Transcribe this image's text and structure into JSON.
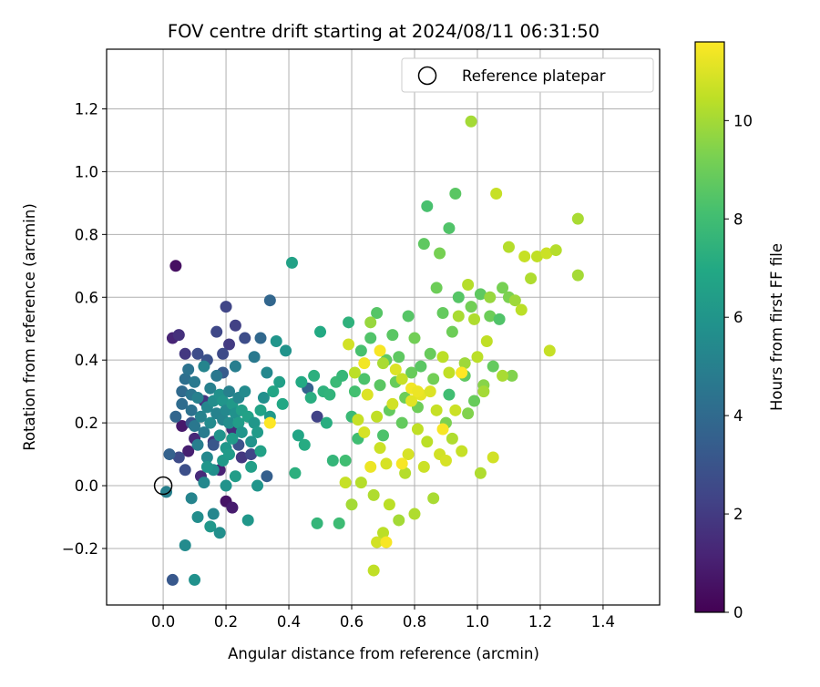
{
  "chart_data": {
    "type": "scatter",
    "title": "FOV centre drift starting at 2024/08/11 06:31:50",
    "xlabel": "Angular distance from reference (arcmin)",
    "ylabel": "Rotation from reference (arcmin)",
    "xlim": [
      -0.18,
      1.58
    ],
    "ylim": [
      -0.38,
      1.39
    ],
    "xticks": [
      "0.0",
      "0.2",
      "0.4",
      "0.6",
      "0.8",
      "1.0",
      "1.2",
      "1.4"
    ],
    "yticks": [
      "−0.2",
      "0.0",
      "0.2",
      "0.4",
      "0.6",
      "0.8",
      "1.0",
      "1.2"
    ],
    "grid": true,
    "legend": {
      "position": "top-right",
      "entries": [
        "Reference platepar"
      ]
    },
    "reference_point": {
      "x": 0.0,
      "y": 0.0
    },
    "colorbar": {
      "label": "Hours from first FF file",
      "range": [
        0,
        11.6
      ],
      "ticks": [
        "0",
        "2",
        "4",
        "6",
        "8",
        "10"
      ],
      "colormap": "viridis"
    },
    "points": [
      [
        0.04,
        0.7,
        0.5
      ],
      [
        0.03,
        0.47,
        1.2
      ],
      [
        0.05,
        0.48,
        1.6
      ],
      [
        0.06,
        0.19,
        0.8
      ],
      [
        0.08,
        0.11,
        1.0
      ],
      [
        0.1,
        0.15,
        1.3
      ],
      [
        0.2,
        -0.05,
        0.6
      ],
      [
        0.22,
        -0.07,
        0.9
      ],
      [
        0.18,
        0.05,
        1.1
      ],
      [
        0.12,
        0.03,
        1.4
      ],
      [
        0.16,
        0.14,
        1.7
      ],
      [
        0.22,
        0.18,
        1.5
      ],
      [
        0.25,
        0.09,
        1.9
      ],
      [
        0.13,
        0.27,
        1.8
      ],
      [
        0.21,
        0.45,
        2.0
      ],
      [
        0.23,
        0.51,
        2.2
      ],
      [
        0.28,
        0.1,
        2.4
      ],
      [
        0.07,
        0.42,
        1.9
      ],
      [
        0.03,
        -0.3,
        3.2
      ],
      [
        0.05,
        0.09,
        2.6
      ],
      [
        0.07,
        0.05,
        2.8
      ],
      [
        0.11,
        0.42,
        2.7
      ],
      [
        0.14,
        0.4,
        2.9
      ],
      [
        0.17,
        0.49,
        2.5
      ],
      [
        0.19,
        0.42,
        2.6
      ],
      [
        0.2,
        0.57,
        2.4
      ],
      [
        0.24,
        0.13,
        2.9
      ],
      [
        0.26,
        0.47,
        2.7
      ],
      [
        0.09,
        0.2,
        3.0
      ],
      [
        0.16,
        0.13,
        3.1
      ],
      [
        0.19,
        0.36,
        3.3
      ],
      [
        0.33,
        0.03,
        3.5
      ],
      [
        0.34,
        0.59,
        3.8
      ],
      [
        0.31,
        0.47,
        3.9
      ],
      [
        0.49,
        0.22,
        2.3
      ],
      [
        0.46,
        0.31,
        3.6
      ],
      [
        0.02,
        0.1,
        3.6
      ],
      [
        0.04,
        0.22,
        3.8
      ],
      [
        0.06,
        0.3,
        4.0
      ],
      [
        0.06,
        0.26,
        4.1
      ],
      [
        0.07,
        0.34,
        4.2
      ],
      [
        0.08,
        0.37,
        4.4
      ],
      [
        0.09,
        0.24,
        4.3
      ],
      [
        0.09,
        0.29,
        4.5
      ],
      [
        0.1,
        0.19,
        4.6
      ],
      [
        0.1,
        0.33,
        4.7
      ],
      [
        0.11,
        0.13,
        4.9
      ],
      [
        0.11,
        0.28,
        5.0
      ],
      [
        0.12,
        0.22,
        5.1
      ],
      [
        0.13,
        0.38,
        5.2
      ],
      [
        0.13,
        0.17,
        4.8
      ],
      [
        0.14,
        0.25,
        5.3
      ],
      [
        0.14,
        0.09,
        5.4
      ],
      [
        0.15,
        0.31,
        5.0
      ],
      [
        0.15,
        0.2,
        5.5
      ],
      [
        0.16,
        0.27,
        5.6
      ],
      [
        0.16,
        0.05,
        5.7
      ],
      [
        0.17,
        0.23,
        5.1
      ],
      [
        0.17,
        0.35,
        4.6
      ],
      [
        0.18,
        0.29,
        5.8
      ],
      [
        0.18,
        0.16,
        5.9
      ],
      [
        0.19,
        0.21,
        5.2
      ],
      [
        0.19,
        0.27,
        6.0
      ],
      [
        0.2,
        0.24,
        5.4
      ],
      [
        0.2,
        0.12,
        6.1
      ],
      [
        0.21,
        0.3,
        5.0
      ],
      [
        0.21,
        0.2,
        5.6
      ],
      [
        0.22,
        0.26,
        6.2
      ],
      [
        0.22,
        0.15,
        6.3
      ],
      [
        0.23,
        0.23,
        5.8
      ],
      [
        0.23,
        0.38,
        4.9
      ],
      [
        0.24,
        0.2,
        6.4
      ],
      [
        0.24,
        0.28,
        5.3
      ],
      [
        0.25,
        0.17,
        6.0
      ],
      [
        0.25,
        0.24,
        6.5
      ],
      [
        0.26,
        0.3,
        5.5
      ],
      [
        0.27,
        0.22,
        6.6
      ],
      [
        0.28,
        0.14,
        5.9
      ],
      [
        0.29,
        0.2,
        6.1
      ],
      [
        0.29,
        0.41,
        4.7
      ],
      [
        0.3,
        0.17,
        6.3
      ],
      [
        0.31,
        0.24,
        6.7
      ],
      [
        0.32,
        0.28,
        5.7
      ],
      [
        0.33,
        0.36,
        5.4
      ],
      [
        0.34,
        0.22,
        6.2
      ],
      [
        0.35,
        0.3,
        6.8
      ],
      [
        0.36,
        0.46,
        6.0
      ],
      [
        0.37,
        0.33,
        6.5
      ],
      [
        0.38,
        0.26,
        6.9
      ],
      [
        0.39,
        0.43,
        5.9
      ],
      [
        0.01,
        -0.02,
        5.0
      ],
      [
        0.07,
        -0.19,
        5.5
      ],
      [
        0.09,
        -0.04,
        5.2
      ],
      [
        0.1,
        -0.3,
        5.8
      ],
      [
        0.11,
        -0.1,
        5.6
      ],
      [
        0.13,
        0.01,
        5.4
      ],
      [
        0.14,
        0.06,
        6.0
      ],
      [
        0.15,
        -0.13,
        6.1
      ],
      [
        0.16,
        -0.09,
        5.3
      ],
      [
        0.18,
        -0.15,
        5.7
      ],
      [
        0.19,
        0.08,
        6.2
      ],
      [
        0.2,
        0.0,
        5.9
      ],
      [
        0.21,
        0.1,
        6.3
      ],
      [
        0.23,
        0.03,
        6.4
      ],
      [
        0.27,
        -0.11,
        6.1
      ],
      [
        0.28,
        0.06,
        6.5
      ],
      [
        0.3,
        0.0,
        6.0
      ],
      [
        0.31,
        0.11,
        6.6
      ],
      [
        0.41,
        0.71,
        6.6
      ],
      [
        0.42,
        0.04,
        7.3
      ],
      [
        0.43,
        0.16,
        6.8
      ],
      [
        0.44,
        0.33,
        7.0
      ],
      [
        0.45,
        0.13,
        7.1
      ],
      [
        0.47,
        0.28,
        7.2
      ],
      [
        0.48,
        0.35,
        7.3
      ],
      [
        0.49,
        -0.12,
        7.6
      ],
      [
        0.5,
        0.49,
        7.0
      ],
      [
        0.51,
        0.3,
        7.4
      ],
      [
        0.52,
        0.2,
        7.2
      ],
      [
        0.53,
        0.29,
        7.5
      ],
      [
        0.54,
        0.08,
        7.6
      ],
      [
        0.55,
        0.33,
        7.8
      ],
      [
        0.56,
        -0.12,
        7.9
      ],
      [
        0.57,
        0.35,
        7.7
      ],
      [
        0.58,
        0.08,
        8.0
      ],
      [
        0.59,
        0.52,
        7.4
      ],
      [
        0.6,
        0.22,
        7.8
      ],
      [
        0.61,
        0.3,
        8.1
      ],
      [
        0.62,
        0.15,
        8.0
      ],
      [
        0.63,
        0.43,
        8.2
      ],
      [
        0.64,
        0.34,
        8.3
      ],
      [
        0.66,
        0.47,
        8.4
      ],
      [
        0.68,
        0.55,
        8.5
      ],
      [
        0.69,
        0.32,
        8.6
      ],
      [
        0.7,
        0.16,
        8.3
      ],
      [
        0.71,
        0.4,
        8.7
      ],
      [
        0.72,
        0.24,
        8.8
      ],
      [
        0.73,
        0.48,
        8.6
      ],
      [
        0.74,
        0.33,
        8.9
      ],
      [
        0.75,
        0.41,
        8.7
      ],
      [
        0.76,
        0.2,
        8.8
      ],
      [
        0.77,
        0.28,
        9.0
      ],
      [
        0.78,
        0.54,
        8.5
      ],
      [
        0.79,
        0.36,
        8.9
      ],
      [
        0.8,
        0.47,
        9.1
      ],
      [
        0.81,
        0.25,
        9.0
      ],
      [
        0.82,
        0.38,
        8.6
      ],
      [
        0.83,
        0.77,
        8.7
      ],
      [
        0.84,
        0.89,
        8.2
      ],
      [
        0.85,
        0.42,
        8.9
      ],
      [
        0.86,
        0.34,
        9.1
      ],
      [
        0.87,
        0.63,
        9.0
      ],
      [
        0.88,
        0.74,
        9.2
      ],
      [
        0.89,
        0.55,
        8.8
      ],
      [
        0.9,
        0.2,
        9.3
      ],
      [
        0.91,
        0.29,
        8.0
      ],
      [
        0.91,
        0.82,
        8.4
      ],
      [
        0.92,
        0.49,
        9.0
      ],
      [
        0.93,
        0.93,
        8.6
      ],
      [
        0.94,
        0.6,
        8.5
      ],
      [
        0.95,
        0.36,
        9.3
      ],
      [
        0.96,
        0.35,
        8.7
      ],
      [
        0.97,
        0.23,
        9.4
      ],
      [
        0.98,
        0.57,
        9.1
      ],
      [
        0.99,
        0.27,
        8.9
      ],
      [
        1.01,
        0.61,
        8.7
      ],
      [
        1.02,
        0.32,
        9.5
      ],
      [
        1.04,
        0.54,
        9.0
      ],
      [
        1.05,
        0.38,
        8.8
      ],
      [
        1.07,
        0.53,
        8.4
      ],
      [
        1.08,
        0.63,
        9.2
      ],
      [
        1.1,
        0.6,
        9.3
      ],
      [
        1.11,
        0.35,
        9.4
      ],
      [
        0.58,
        0.01,
        10.6
      ],
      [
        0.59,
        0.45,
        10.8
      ],
      [
        0.6,
        -0.06,
        10.0
      ],
      [
        0.61,
        0.36,
        10.4
      ],
      [
        0.62,
        0.21,
        10.6
      ],
      [
        0.63,
        0.01,
        10.3
      ],
      [
        0.64,
        0.17,
        10.9
      ],
      [
        0.65,
        0.29,
        11.0
      ],
      [
        0.66,
        0.52,
        9.8
      ],
      [
        0.67,
        -0.03,
        10.2
      ],
      [
        0.68,
        0.22,
        10.5
      ],
      [
        0.69,
        0.12,
        10.7
      ],
      [
        0.7,
        0.39,
        10.1
      ],
      [
        0.71,
        0.07,
        10.9
      ],
      [
        0.72,
        -0.06,
        10.4
      ],
      [
        0.73,
        0.26,
        10.8
      ],
      [
        0.74,
        0.37,
        11.0
      ],
      [
        0.75,
        -0.11,
        10.0
      ],
      [
        0.76,
        0.34,
        10.6
      ],
      [
        0.77,
        0.04,
        10.3
      ],
      [
        0.78,
        0.1,
        10.9
      ],
      [
        0.79,
        0.27,
        11.1
      ],
      [
        0.8,
        -0.09,
        10.2
      ],
      [
        0.81,
        0.18,
        10.5
      ],
      [
        0.82,
        0.29,
        11.2
      ],
      [
        0.83,
        0.06,
        10.7
      ],
      [
        0.84,
        0.14,
        10.4
      ],
      [
        0.85,
        0.3,
        11.0
      ],
      [
        0.86,
        -0.04,
        10.1
      ],
      [
        0.87,
        0.24,
        10.6
      ],
      [
        0.88,
        0.1,
        10.8
      ],
      [
        0.89,
        0.41,
        10.4
      ],
      [
        0.9,
        0.08,
        10.9
      ],
      [
        0.91,
        0.36,
        10.5
      ],
      [
        0.92,
        0.15,
        10.2
      ],
      [
        0.93,
        0.24,
        10.7
      ],
      [
        0.94,
        0.54,
        10.1
      ],
      [
        0.95,
        0.11,
        10.6
      ],
      [
        0.96,
        0.39,
        9.9
      ],
      [
        0.97,
        0.64,
        10.3
      ],
      [
        0.98,
        1.16,
        10.0
      ],
      [
        0.99,
        0.53,
        10.2
      ],
      [
        1.0,
        0.41,
        10.4
      ],
      [
        1.01,
        0.04,
        10.2
      ],
      [
        1.02,
        0.3,
        10.0
      ],
      [
        1.03,
        0.46,
        10.5
      ],
      [
        1.04,
        0.6,
        9.8
      ],
      [
        1.05,
        0.09,
        10.8
      ],
      [
        1.06,
        0.93,
        10.6
      ],
      [
        1.08,
        0.35,
        10.1
      ],
      [
        1.1,
        0.76,
        10.3
      ],
      [
        1.12,
        0.59,
        9.9
      ],
      [
        1.14,
        0.56,
        10.4
      ],
      [
        1.15,
        0.73,
        10.6
      ],
      [
        1.17,
        0.66,
        10.2
      ],
      [
        1.19,
        0.73,
        10.5
      ],
      [
        1.22,
        0.74,
        10.7
      ],
      [
        1.23,
        0.43,
        10.6
      ],
      [
        1.25,
        0.75,
        10.3
      ],
      [
        1.32,
        0.85,
        10.1
      ],
      [
        1.32,
        0.67,
        10.0
      ],
      [
        0.67,
        -0.27,
        10.5
      ],
      [
        0.68,
        -0.18,
        10.8
      ],
      [
        0.7,
        -0.15,
        10.4
      ],
      [
        0.71,
        -0.18,
        11.5
      ],
      [
        0.66,
        0.06,
        11.3
      ],
      [
        0.69,
        0.43,
        11.5
      ],
      [
        0.79,
        0.31,
        11.4
      ],
      [
        0.95,
        0.36,
        11.6
      ],
      [
        0.81,
        0.3,
        11.3
      ],
      [
        0.34,
        0.2,
        11.6
      ],
      [
        0.64,
        0.39,
        11.4
      ],
      [
        0.76,
        0.07,
        11.5
      ],
      [
        0.89,
        0.18,
        11.5
      ]
    ]
  }
}
